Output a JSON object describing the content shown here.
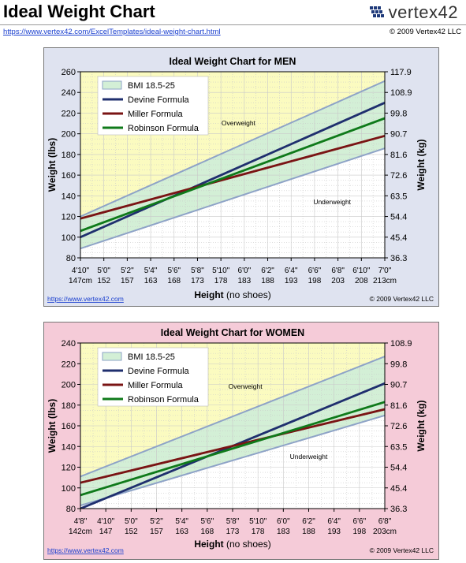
{
  "page": {
    "title": "Ideal Weight Chart",
    "url": "https://www.vertex42.com/ExcelTemplates/ideal-weight-chart.html",
    "copyright": "© 2009 Vertex42 LLC",
    "logo_text": "vertex42"
  },
  "chart_data": [
    {
      "type": "line",
      "title": "Ideal Weight Chart for MEN",
      "ylabel": "Weight (lbs)",
      "ylabel_right": "Weight (kg)",
      "xlabel_bold": "Height",
      "xlabel_rest": " (no shoes)",
      "footer_url": "https://www.vertex42.com",
      "footer_copy": "© 2009 Vertex42 LLC",
      "ylim": [
        80,
        260
      ],
      "y_ticks": [
        80,
        100,
        120,
        140,
        160,
        180,
        200,
        220,
        240,
        260
      ],
      "y2_ticks": [
        "36.3",
        "45.4",
        "54.4",
        "63.5",
        "72.6",
        "81.6",
        "90.7",
        "99.8",
        "108.9",
        "117.9"
      ],
      "xlim": [
        58,
        84
      ],
      "x_ticks": [
        {
          "v": 58,
          "ft": "4'10\"",
          "cm": "147cm"
        },
        {
          "v": 60,
          "ft": "5'0\"",
          "cm": "152"
        },
        {
          "v": 62,
          "ft": "5'2\"",
          "cm": "157"
        },
        {
          "v": 64,
          "ft": "5'4\"",
          "cm": "163"
        },
        {
          "v": 66,
          "ft": "5'6\"",
          "cm": "168"
        },
        {
          "v": 68,
          "ft": "5'8\"",
          "cm": "173"
        },
        {
          "v": 70,
          "ft": "5'10\"",
          "cm": "178"
        },
        {
          "v": 72,
          "ft": "6'0\"",
          "cm": "183"
        },
        {
          "v": 74,
          "ft": "6'2\"",
          "cm": "188"
        },
        {
          "v": 76,
          "ft": "6'4\"",
          "cm": "193"
        },
        {
          "v": 78,
          "ft": "6'6\"",
          "cm": "198"
        },
        {
          "v": 80,
          "ft": "6'8\"",
          "cm": "203"
        },
        {
          "v": 82,
          "ft": "6'10\"",
          "cm": "208"
        },
        {
          "v": 84,
          "ft": "7'0\"",
          "cm": "213cm"
        }
      ],
      "bmi_low": {
        "x": [
          58,
          84
        ],
        "y": [
          89,
          186
        ]
      },
      "bmi_high": {
        "x": [
          58,
          84
        ],
        "y": [
          120,
          251
        ]
      },
      "series": [
        {
          "name": "Devine Formula",
          "color": "#1f2f6e",
          "x": [
            58,
            84
          ],
          "y": [
            100,
            230
          ]
        },
        {
          "name": "Miller Formula",
          "color": "#7a1414",
          "x": [
            58,
            84
          ],
          "y": [
            118,
            198
          ]
        },
        {
          "name": "Robinson Formula",
          "color": "#0f7a1a",
          "x": [
            58,
            84
          ],
          "y": [
            106,
            215
          ]
        }
      ],
      "legend": [
        "BMI 18.5-25",
        "Devine Formula",
        "Miller Formula",
        "Robinson Formula"
      ],
      "legend_position": "top-left",
      "annotations": [
        {
          "text": "Overweight",
          "x": 71.5,
          "y": 208
        },
        {
          "text": "Underweight",
          "x": 79.5,
          "y": 132
        }
      ]
    },
    {
      "type": "line",
      "title": "Ideal Weight Chart for WOMEN",
      "ylabel": "Weight (lbs)",
      "ylabel_right": "Weight (kg)",
      "xlabel_bold": "Height",
      "xlabel_rest": " (no shoes)",
      "footer_url": "https://www.vertex42.com",
      "footer_copy": "© 2009 Vertex42 LLC",
      "ylim": [
        80,
        240
      ],
      "y_ticks": [
        80,
        100,
        120,
        140,
        160,
        180,
        200,
        220,
        240
      ],
      "y2_ticks": [
        "36.3",
        "45.4",
        "54.4",
        "63.5",
        "72.6",
        "81.6",
        "90.7",
        "99.8",
        "108.9"
      ],
      "xlim": [
        56,
        80
      ],
      "x_ticks": [
        {
          "v": 56,
          "ft": "4'8\"",
          "cm": "142cm"
        },
        {
          "v": 58,
          "ft": "4'10\"",
          "cm": "147"
        },
        {
          "v": 60,
          "ft": "5'0\"",
          "cm": "152"
        },
        {
          "v": 62,
          "ft": "5'2\"",
          "cm": "157"
        },
        {
          "v": 64,
          "ft": "5'4\"",
          "cm": "163"
        },
        {
          "v": 66,
          "ft": "5'6\"",
          "cm": "168"
        },
        {
          "v": 68,
          "ft": "5'8\"",
          "cm": "173"
        },
        {
          "v": 70,
          "ft": "5'10\"",
          "cm": "178"
        },
        {
          "v": 72,
          "ft": "6'0\"",
          "cm": "183"
        },
        {
          "v": 74,
          "ft": "6'2\"",
          "cm": "188"
        },
        {
          "v": 76,
          "ft": "6'4\"",
          "cm": "193"
        },
        {
          "v": 78,
          "ft": "6'6\"",
          "cm": "198"
        },
        {
          "v": 80,
          "ft": "6'8\"",
          "cm": "203cm"
        }
      ],
      "bmi_low": {
        "x": [
          56,
          80
        ],
        "y": [
          83,
          170
        ]
      },
      "bmi_high": {
        "x": [
          56,
          80
        ],
        "y": [
          111,
          227
        ]
      },
      "series": [
        {
          "name": "Devine Formula",
          "color": "#1f2f6e",
          "x": [
            56,
            80
          ],
          "y": [
            80,
            201
          ]
        },
        {
          "name": "Miller Formula",
          "color": "#7a1414",
          "x": [
            56,
            80
          ],
          "y": [
            105,
            176
          ]
        },
        {
          "name": "Robinson Formula",
          "color": "#0f7a1a",
          "x": [
            56,
            80
          ],
          "y": [
            93,
            183
          ]
        }
      ],
      "legend": [
        "BMI 18.5-25",
        "Devine Formula",
        "Miller Formula",
        "Robinson Formula"
      ],
      "legend_position": "top-left",
      "annotations": [
        {
          "text": "Overweight",
          "x": 69,
          "y": 196
        },
        {
          "text": "Underweight",
          "x": 74,
          "y": 128
        }
      ]
    }
  ],
  "colors": {
    "overweight_fill": "#fbfbc0",
    "healthy_fill": "#d3efd6",
    "underweight_fill": "#ffffff",
    "bmi_line": "#8ea3c7",
    "grid": "#c9c9c9",
    "men_panel": "#dfe3f0",
    "women_panel": "#f5cbd8"
  }
}
